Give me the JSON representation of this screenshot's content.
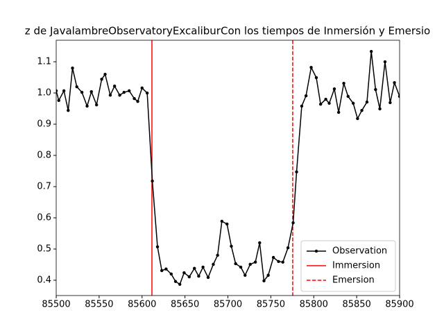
{
  "chart_data": {
    "type": "line",
    "title": "z de JavalambreObservatoryExcaliburCon los tiempos de Inmersión y Emersio",
    "x": [
      85500,
      85503,
      85509,
      85514,
      85519,
      85524,
      85530,
      85536,
      85541,
      85547,
      85553,
      85557,
      85563,
      85568,
      85574,
      85579,
      85585,
      85591,
      85595,
      85600,
      85606,
      85612,
      85618,
      85623,
      85628,
      85634,
      85639,
      85644,
      85649,
      85655,
      85661,
      85666,
      85671,
      85677,
      85683,
      85688,
      85693,
      85699,
      85704,
      85709,
      85715,
      85720,
      85726,
      85732,
      85737,
      85742,
      85747,
      85753,
      85759,
      85764,
      85770,
      85776,
      85780,
      85786,
      85791,
      85797,
      85803,
      85808,
      85814,
      85818,
      85824,
      85829,
      85835,
      85840,
      85846,
      85851,
      85856,
      85862,
      85867,
      85872,
      85877,
      85883,
      85889,
      85894,
      85900
    ],
    "series": [
      {
        "name": "Observation",
        "color": "#000000",
        "marker": "o",
        "values": [
          1.007,
          0.976,
          1.007,
          0.944,
          1.08,
          1.02,
          1.002,
          0.958,
          1.004,
          0.962,
          1.044,
          1.06,
          0.993,
          1.022,
          0.993,
          1.002,
          1.007,
          0.982,
          0.973,
          1.016,
          1.0,
          0.718,
          0.507,
          0.431,
          0.436,
          0.42,
          0.396,
          0.387,
          0.424,
          0.411,
          0.438,
          0.413,
          0.442,
          0.409,
          0.451,
          0.48,
          0.589,
          0.58,
          0.509,
          0.453,
          0.442,
          0.416,
          0.451,
          0.458,
          0.52,
          0.398,
          0.416,
          0.473,
          0.46,
          0.458,
          0.504,
          0.584,
          0.747,
          0.958,
          0.991,
          1.082,
          1.049,
          0.964,
          0.98,
          0.967,
          1.013,
          0.938,
          1.031,
          0.989,
          0.967,
          0.918,
          0.944,
          0.971,
          1.133,
          1.011,
          0.949,
          1.1,
          0.969,
          1.033,
          0.989
        ]
      }
    ],
    "vlines": [
      {
        "name": "Immersion",
        "x": 85611.5,
        "color": "#ff0000",
        "dashed": false
      },
      {
        "name": "Emersion",
        "x": 85775.5,
        "color": "#ff0000",
        "dashed": true
      }
    ],
    "xlim": [
      85500,
      85900
    ],
    "xticks": [
      85500,
      85550,
      85600,
      85650,
      85700,
      85750,
      85800,
      85850,
      85900
    ],
    "ylim": [
      0.351,
      1.169
    ],
    "yticks": [
      0.4,
      0.5,
      0.6,
      0.7,
      0.8,
      0.9,
      {
        "value": 1,
        "label": "1.0"
      },
      1.1
    ],
    "legend": "lower right"
  }
}
